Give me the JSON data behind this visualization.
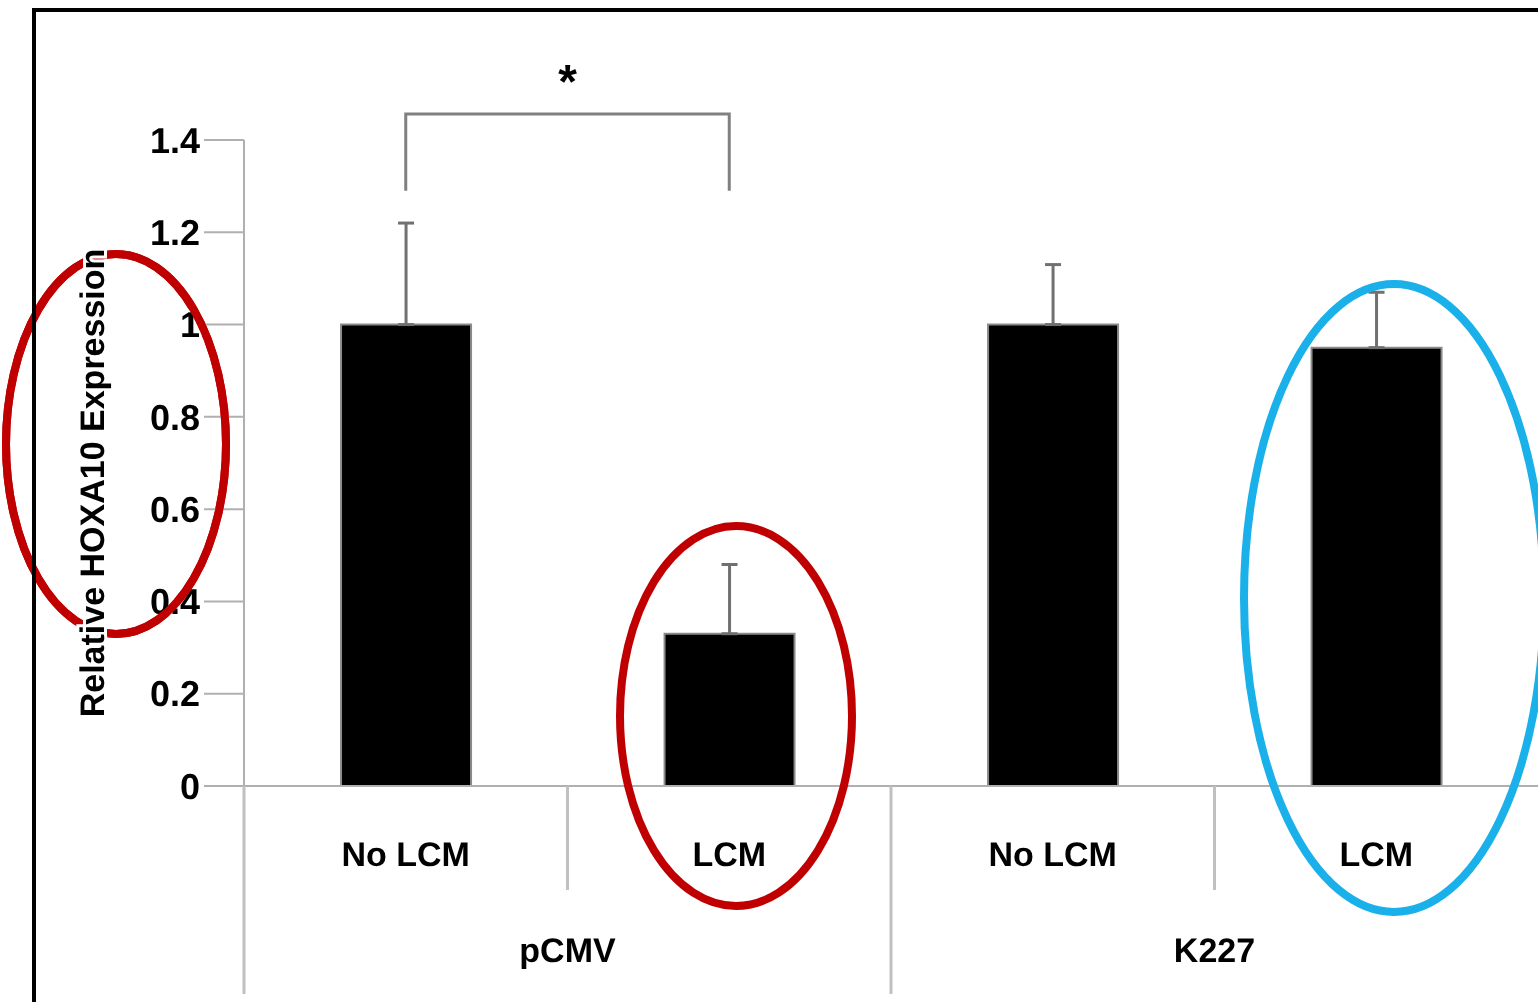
{
  "chart_data": {
    "type": "bar",
    "ylabel": "Relative HOXA10 Expression",
    "categories": [
      "No LCM",
      "LCM",
      "No LCM",
      "LCM"
    ],
    "values": [
      1.0,
      0.33,
      1.0,
      0.95
    ],
    "color": "#000000",
    "errors": [
      [
        1.0,
        1.22
      ],
      [
        0.33,
        0.48
      ],
      [
        1.0,
        1.13
      ],
      [
        0.95,
        1.07
      ]
    ],
    "ylim": [
      0,
      1.4
    ],
    "yticks": [
      0,
      0.2,
      0.4,
      0.6,
      0.8,
      1,
      1.2,
      1.4
    ],
    "annotations": [
      "*",
      "pCMV",
      "K227"
    ]
  }
}
